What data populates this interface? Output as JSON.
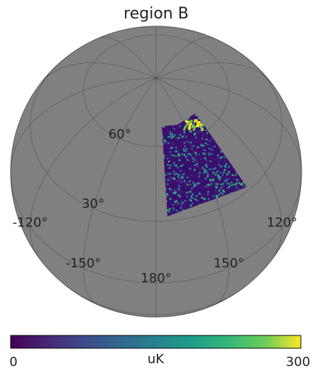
{
  "title": "region B",
  "graticule_labels": [
    {
      "text": "60°",
      "lon": 210,
      "lat": 60
    },
    {
      "text": "30°",
      "lon": 210,
      "lat": 30
    },
    {
      "text": "120°",
      "lon": 120,
      "lat": 0
    },
    {
      "text": "150°",
      "lon": 150,
      "lat": 0
    },
    {
      "text": "180°",
      "lon": 180,
      "lat": 0
    },
    {
      "text": "-150°",
      "lon": -150,
      "lat": 0
    },
    {
      "text": "-120°",
      "lon": -120,
      "lat": 0
    }
  ],
  "colorbar": {
    "label": "uK",
    "lim": [
      0,
      300
    ],
    "ticks": [
      0,
      300
    ],
    "cmap": "viridis"
  }
}
